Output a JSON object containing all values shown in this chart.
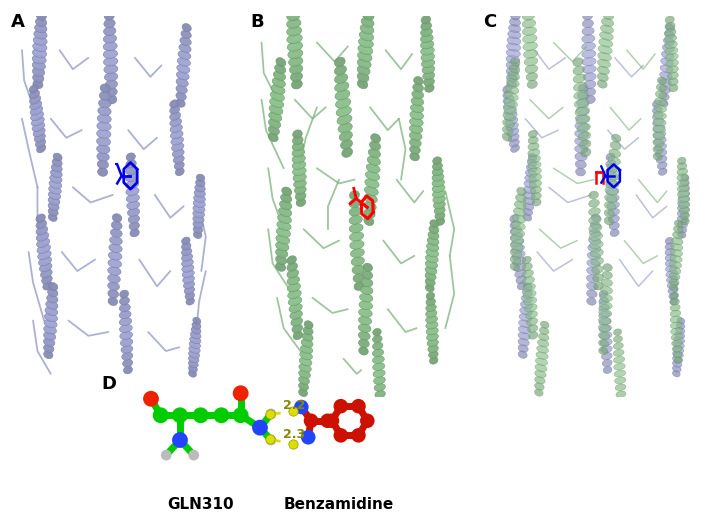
{
  "figure_width": 7.26,
  "figure_height": 5.29,
  "dpi": 100,
  "background_color": "#ffffff",
  "panel_labels": [
    "A",
    "B",
    "C",
    "D"
  ],
  "panel_label_fontsize": 13,
  "panel_label_fontweight": "bold",
  "protein_A_color": [
    158,
    163,
    210
  ],
  "protein_B_color": [
    139,
    191,
    139
  ],
  "ligand_blue_color": "#0000ee",
  "ligand_red_color": "#cc0000",
  "gln310_main_color": "#00cc00",
  "gln310_N_color": "#2244ff",
  "gln310_O_color": "#ff2200",
  "gln310_H_color": "#bbbbbb",
  "benzamidine_color": "#cc1100",
  "hbond_color": "#dddd00",
  "hbond_distances": [
    "2.2",
    "2.3"
  ],
  "label_gln310": "GLN310",
  "label_benzamidine": "Benzamidine",
  "label_fontsize": 11,
  "label_fontweight": "bold",
  "panel_positions": {
    "A": [
      0.015,
      0.25,
      0.305,
      0.72
    ],
    "B": [
      0.345,
      0.25,
      0.305,
      0.72
    ],
    "C": [
      0.665,
      0.25,
      0.325,
      0.72
    ],
    "D": [
      0.17,
      0.02,
      0.38,
      0.26
    ]
  },
  "panel_label_fig_pos": {
    "A": [
      0.015,
      0.975
    ],
    "B": [
      0.345,
      0.975
    ],
    "C": [
      0.665,
      0.975
    ]
  }
}
